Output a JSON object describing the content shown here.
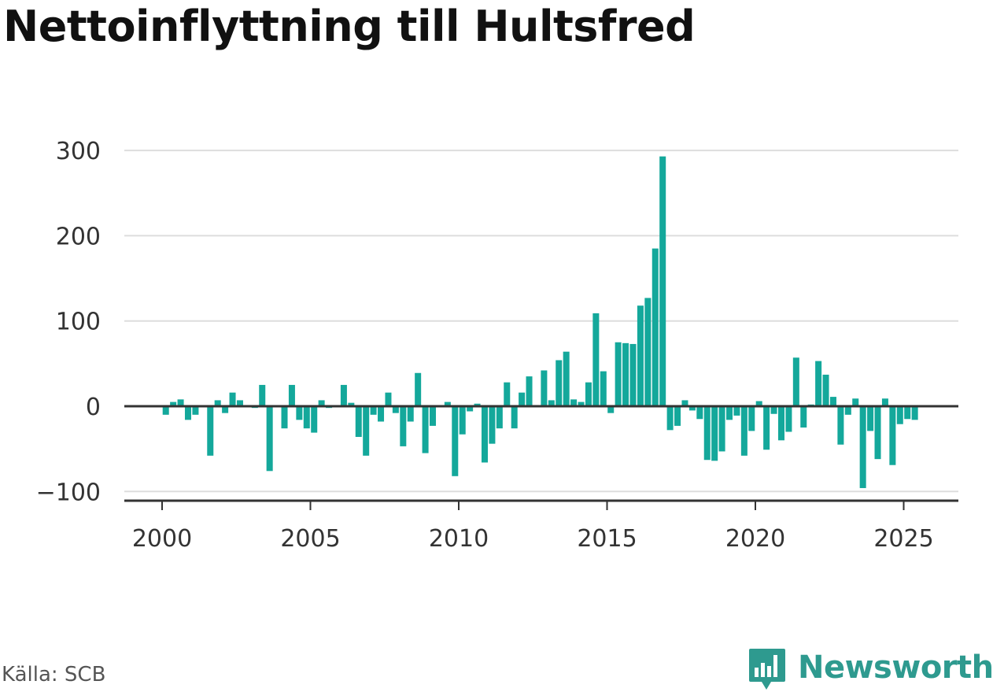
{
  "title": "Nettoinflyttning till Hultsfred",
  "source": "Källa: SCB",
  "brand": {
    "name": "Newsworthy",
    "icon": "newsworthy-logo-icon"
  },
  "colors": {
    "bar": "#14a89b",
    "grid": "#dddddd",
    "zero_line": "#333333",
    "brand": "#2e9a8f"
  },
  "chart_data": {
    "type": "bar",
    "title": "Nettoinflyttning till Hultsfred",
    "xlabel": "",
    "ylabel": "",
    "ylim": [
      -110,
      300
    ],
    "xlim": [
      1999.45,
      2026.85
    ],
    "y_ticks": [
      -100,
      0,
      100,
      200,
      300
    ],
    "y_tick_labels": [
      "−100",
      "0",
      "100",
      "200",
      "300"
    ],
    "x_ticks": [
      2000,
      2005,
      2010,
      2015,
      2020,
      2025
    ],
    "x_tick_labels": [
      "2000",
      "2005",
      "2010",
      "2015",
      "2020",
      "2025"
    ],
    "grid": true,
    "frequency": "quarterly",
    "x": [
      2000.0,
      2000.25,
      2000.5,
      2000.75,
      2001.0,
      2001.25,
      2001.5,
      2001.75,
      2002.0,
      2002.25,
      2002.5,
      2002.75,
      2003.0,
      2003.25,
      2003.5,
      2003.75,
      2004.0,
      2004.25,
      2004.5,
      2004.75,
      2005.0,
      2005.25,
      2005.5,
      2005.75,
      2006.0,
      2006.25,
      2006.5,
      2006.75,
      2007.0,
      2007.25,
      2007.5,
      2007.75,
      2008.0,
      2008.25,
      2008.5,
      2008.75,
      2009.0,
      2009.25,
      2009.5,
      2009.75,
      2010.0,
      2010.25,
      2010.5,
      2010.75,
      2011.0,
      2011.25,
      2011.5,
      2011.75,
      2012.0,
      2012.25,
      2012.5,
      2012.75,
      2013.0,
      2013.25,
      2013.5,
      2013.75,
      2014.0,
      2014.25,
      2014.5,
      2014.75,
      2015.0,
      2015.25,
      2015.5,
      2015.75,
      2016.0,
      2016.25,
      2016.5,
      2016.75,
      2017.0,
      2017.25,
      2017.5,
      2017.75,
      2018.0,
      2018.25,
      2018.5,
      2018.75,
      2019.0,
      2019.25,
      2019.5,
      2019.75,
      2020.0,
      2020.25,
      2020.5,
      2020.75,
      2021.0,
      2021.25,
      2021.5,
      2021.75,
      2022.0,
      2022.25,
      2022.5,
      2022.75,
      2023.0,
      2023.25,
      2023.5,
      2023.75,
      2024.0,
      2024.25,
      2024.5,
      2024.75,
      2025.0,
      2025.25
    ],
    "values": [
      -10,
      5,
      8,
      -16,
      -10,
      0,
      -58,
      7,
      -8,
      16,
      7,
      0,
      -2,
      25,
      -76,
      0,
      -26,
      25,
      -16,
      -26,
      -31,
      7,
      -2,
      0,
      25,
      4,
      -36,
      -58,
      -10,
      -18,
      16,
      -8,
      -47,
      -18,
      39,
      -55,
      -23,
      0,
      5,
      -82,
      -33,
      -6,
      3,
      -66,
      -44,
      -26,
      28,
      -26,
      16,
      35,
      0,
      42,
      7,
      54,
      64,
      8,
      5,
      28,
      109,
      41,
      -8,
      75,
      74,
      73,
      118,
      127,
      185,
      293,
      -28,
      -23,
      7,
      -5,
      -15,
      -63,
      -64,
      -53,
      -16,
      -11,
      -58,
      -29,
      6,
      -51,
      -9,
      -40,
      -30,
      57,
      -25,
      2,
      53,
      37,
      11,
      -45,
      -10,
      9,
      -96,
      -29,
      -62,
      9,
      -69,
      -21,
      -15,
      -16
    ]
  }
}
